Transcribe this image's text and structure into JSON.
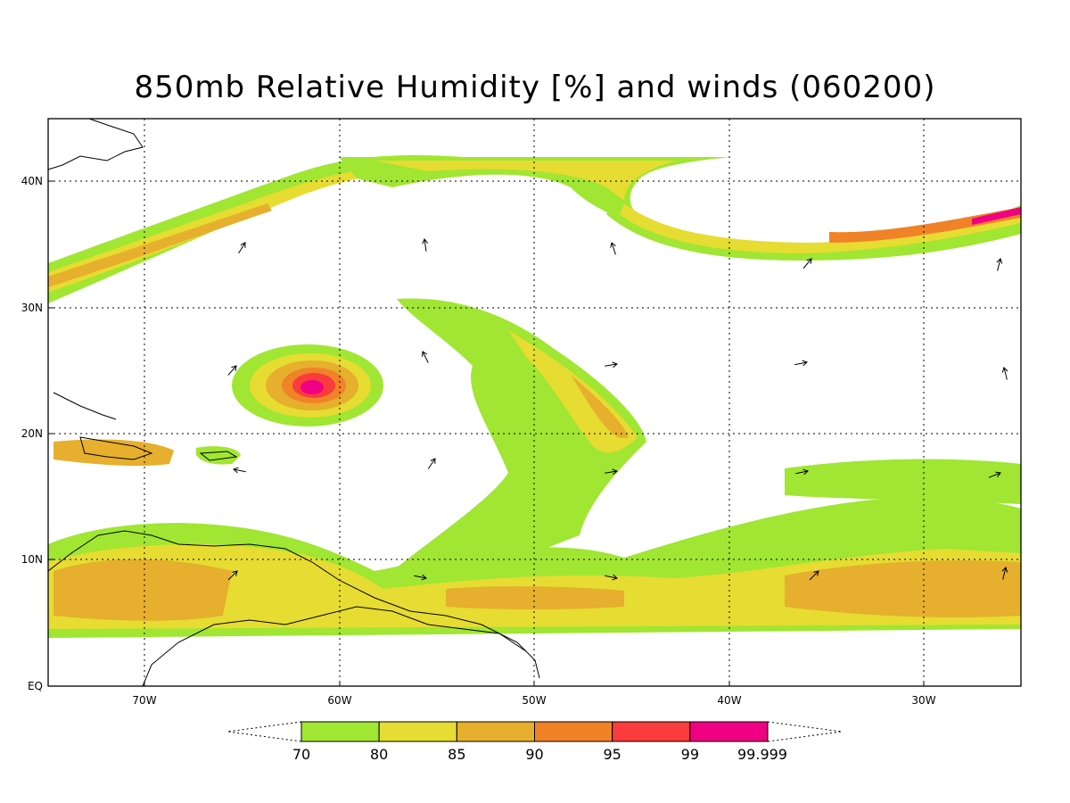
{
  "title": "850mb Relative Humidity [%] and winds (060200)",
  "chart_data": {
    "type": "heatmap",
    "title": "850mb Relative Humidity [%] and winds (060200)",
    "x_ticks": [
      "70W",
      "60W",
      "50W",
      "40W",
      "30W"
    ],
    "y_ticks": [
      "EQ",
      "10N",
      "20N",
      "30N",
      "40N"
    ],
    "colorbar": {
      "levels": [
        "70",
        "80",
        "85",
        "90",
        "95",
        "99",
        "99.999"
      ],
      "colors": [
        "#a0e632",
        "#e6dc32",
        "#e6af2d",
        "#f08228",
        "#fa3c3c",
        "#f00082"
      ]
    },
    "features": [
      "Moisture band from 75W 32N to 45W 42N",
      "Moisture band from 45W 40N arcing to 25W 38N",
      "Tropical cyclone near 61W 24N",
      "Moisture tongue from 55W 31N to 45W 20N",
      "Broad moist zone 75W-25W, 5N-15N"
    ]
  }
}
